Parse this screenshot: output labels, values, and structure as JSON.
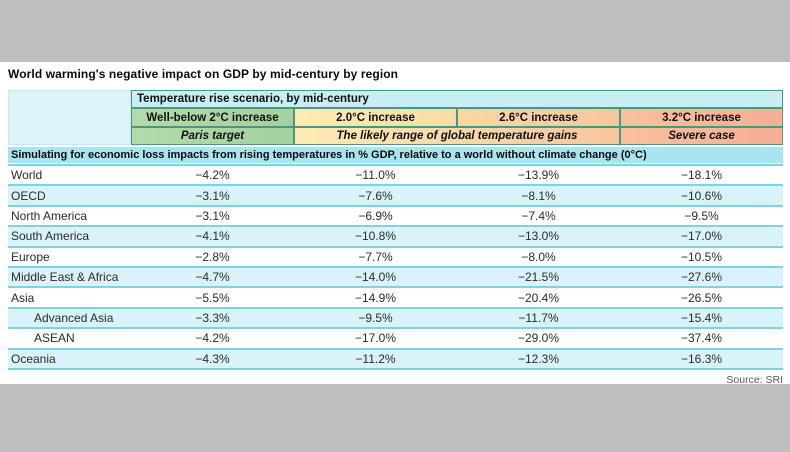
{
  "title": "World warming's negative impact on GDP by mid-century by region",
  "source": "Source: SRI",
  "header": {
    "scenario_title": "Temperature rise scenario, by mid-century",
    "col_labels": [
      "Well-below 2°C increase",
      "2.0°C increase",
      "2.6°C increase",
      "3.2°C increase"
    ],
    "paris": "Paris target",
    "likely": "The likely range of global temperature gains",
    "severe": "Severe case"
  },
  "note": "Simulating for economic loss impacts from rising temperatures in % GDP, relative to a world without climate change (0°C)",
  "table": {
    "rows": [
      {
        "region": "World",
        "values": [
          "−4.2%",
          "−11.0%",
          "−13.9%",
          "−18.1%"
        ]
      },
      {
        "region": "OECD",
        "values": [
          "−3.1%",
          "−7.6%",
          "−8.1%",
          "−10.6%"
        ]
      },
      {
        "region": "North America",
        "values": [
          "−3.1%",
          "−6.9%",
          "−7.4%",
          "−9.5%"
        ]
      },
      {
        "region": "South America",
        "values": [
          "−4.1%",
          "−10.8%",
          "−13.0%",
          "−17.0%"
        ]
      },
      {
        "region": "Europe",
        "values": [
          "−2.8%",
          "−7.7%",
          "−8.0%",
          "−10.5%"
        ]
      },
      {
        "region": "Middle East & Africa",
        "values": [
          "−4.7%",
          "−14.0%",
          "−21.5%",
          "−27.6%"
        ]
      },
      {
        "region": "Asia",
        "values": [
          "−5.5%",
          "−14.9%",
          "−20.4%",
          "−26.5%"
        ]
      },
      {
        "region": "Advanced Asia",
        "values": [
          "−3.3%",
          "−9.5%",
          "−11.7%",
          "−15.4%"
        ]
      },
      {
        "region": "ASEAN",
        "values": [
          "−4.2%",
          "−17.0%",
          "−29.0%",
          "−37.4%"
        ]
      },
      {
        "region": "Oceania",
        "values": [
          "−4.3%",
          "−11.2%",
          "−12.3%",
          "−16.3%"
        ]
      }
    ]
  },
  "colors": {
    "page_bg": "#bcbec0",
    "content_bg": "#ffffff",
    "scenario_header_bg": "#c6eef3",
    "green_cell": "#a9d5a3",
    "yellow_cell": "#fbe3ac",
    "orange_cell": "#f9cda0",
    "salmon_cell": "#f8b79a",
    "note_band_bg": "#a8e5ef",
    "row_alt_bg": "#d8f3f9",
    "row_line": "#7fd2e2",
    "header_border": "#4e9383",
    "corner_cell_bg": "#dff4f8"
  },
  "chart_data": {
    "type": "table",
    "title": "World warming's negative impact on GDP by mid-century by region",
    "subtitle": "Temperature rise scenario, by mid-century",
    "note": "Simulating for economic loss impacts from rising temperatures in % GDP, relative to a world without climate change (0°C)",
    "columns": [
      "Well-below 2°C increase (Paris target)",
      "2.0°C increase (likely range)",
      "2.6°C increase (likely range)",
      "3.2°C increase (Severe case)"
    ],
    "unit": "% GDP change vs no climate change",
    "rows": [
      {
        "region": "World",
        "values": [
          -4.2,
          -11.0,
          -13.9,
          -18.1
        ]
      },
      {
        "region": "OECD",
        "values": [
          -3.1,
          -7.6,
          -8.1,
          -10.6
        ]
      },
      {
        "region": "North America",
        "values": [
          -3.1,
          -6.9,
          -7.4,
          -9.5
        ]
      },
      {
        "region": "South America",
        "values": [
          -4.1,
          -10.8,
          -13.0,
          -17.0
        ]
      },
      {
        "region": "Europe",
        "values": [
          -2.8,
          -7.7,
          -8.0,
          -10.5
        ]
      },
      {
        "region": "Middle East & Africa",
        "values": [
          -4.7,
          -14.0,
          -21.5,
          -27.6
        ]
      },
      {
        "region": "Asia",
        "values": [
          -5.5,
          -14.9,
          -20.4,
          -26.5
        ]
      },
      {
        "region": "Advanced Asia",
        "values": [
          -3.3,
          -9.5,
          -11.7,
          -15.4
        ]
      },
      {
        "region": "ASEAN",
        "values": [
          -4.2,
          -17.0,
          -29.0,
          -37.4
        ]
      },
      {
        "region": "Oceania",
        "values": [
          -4.3,
          -11.2,
          -12.3,
          -16.3
        ]
      }
    ],
    "source": "Source: SRI"
  }
}
